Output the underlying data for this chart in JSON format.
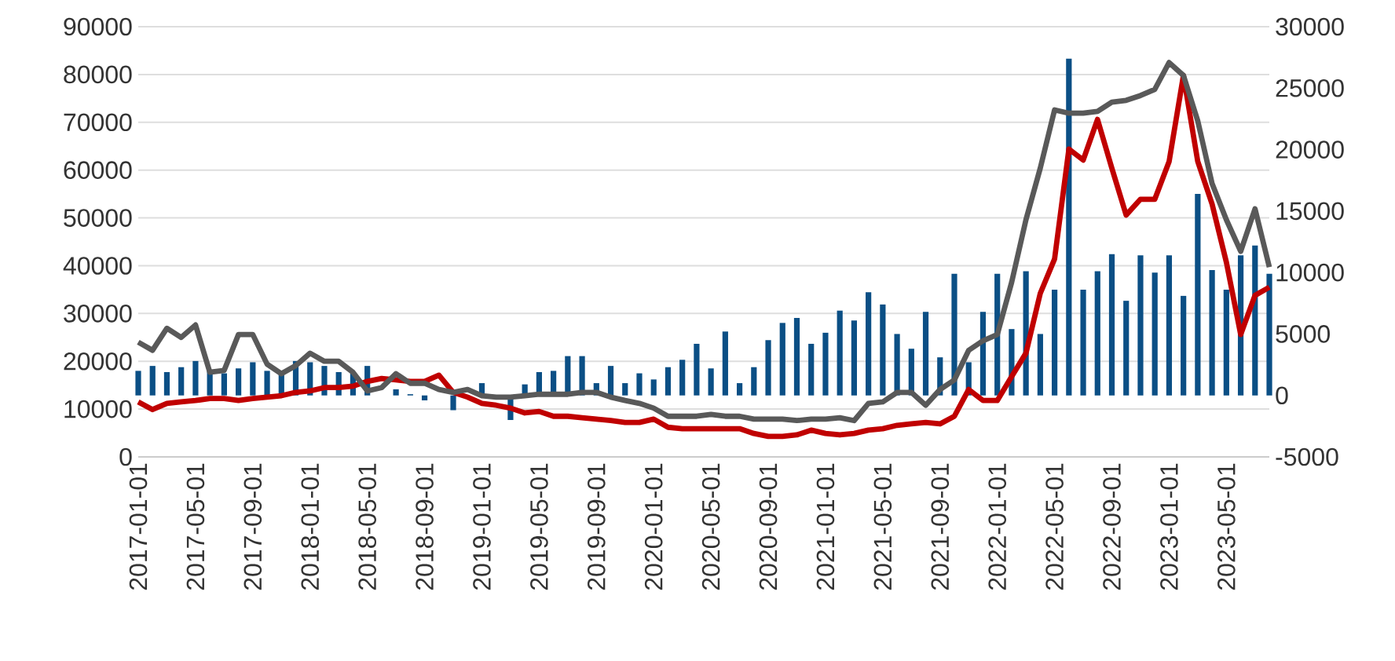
{
  "chart_data": {
    "type": "line",
    "categories": [
      "2017-01-01",
      null,
      null,
      null,
      "2017-05-01",
      null,
      null,
      null,
      "2017-09-01",
      null,
      null,
      null,
      "2018-01-01",
      null,
      null,
      null,
      "2018-05-01",
      null,
      null,
      null,
      "2018-09-01",
      null,
      null,
      null,
      "2019-01-01",
      null,
      null,
      null,
      "2019-05-01",
      null,
      null,
      null,
      "2019-09-01",
      null,
      null,
      null,
      "2020-01-01",
      null,
      null,
      null,
      "2020-05-01",
      null,
      null,
      null,
      "2020-09-01",
      null,
      null,
      null,
      "2021-01-01",
      null,
      null,
      null,
      "2021-05-01",
      null,
      null,
      null,
      "2021-09-01",
      null,
      null,
      null,
      "2022-01-01",
      null,
      null,
      null,
      "2022-05-01",
      null,
      null,
      null,
      "2022-09-01",
      null,
      null,
      null,
      "2023-01-01",
      null,
      null,
      null,
      "2023-05-01",
      null,
      null,
      null
    ],
    "series": [
      {
        "type": "bar",
        "axis": "y2",
        "color": "#0b4f85",
        "values": [
          2000,
          2400,
          1900,
          2300,
          2800,
          2000,
          1800,
          2200,
          2700,
          2000,
          1800,
          2800,
          2700,
          2400,
          1900,
          1800,
          2400,
          null,
          500,
          100,
          -400,
          0,
          -1200,
          null,
          1000,
          null,
          -2000,
          900,
          1900,
          2000,
          3200,
          3200,
          1000,
          2400,
          1000,
          1800,
          1300,
          2300,
          2900,
          4200,
          2200,
          5200,
          1000,
          2300,
          4500,
          5900,
          6300,
          4200,
          5100,
          6900,
          6100,
          8400,
          7400,
          5000,
          3800,
          6800,
          3100,
          9900,
          2700,
          6800,
          9900,
          5400,
          10100,
          5000,
          8600,
          27400,
          8600,
          10100,
          11500,
          7700,
          11400,
          10000,
          11400,
          8100,
          16400,
          10200,
          8600,
          11400,
          12200,
          9900
        ]
      },
      {
        "color": "#c00000",
        "values": [
          11500,
          9900,
          11200,
          11500,
          11800,
          12200,
          12200,
          11800,
          12200,
          12500,
          12800,
          13500,
          13800,
          14500,
          14500,
          14800,
          15800,
          16400,
          16100,
          15800,
          15800,
          17100,
          13500,
          12500,
          11200,
          10800,
          10200,
          9200,
          9500,
          8500,
          8500,
          8200,
          7900,
          7600,
          7200,
          7200,
          7900,
          6200,
          5900,
          5900,
          5900,
          5900,
          5900,
          4900,
          4300,
          4300,
          4600,
          5600,
          4900,
          4600,
          4900,
          5600,
          5900,
          6600,
          6900,
          7200,
          6900,
          8500,
          14100,
          11800,
          11800,
          16800,
          21700,
          34200,
          41400,
          64400,
          62100,
          70600,
          60400,
          50600,
          53900,
          53900,
          61800,
          79800,
          61800,
          52900,
          40700,
          25600,
          33800,
          35500
        ]
      },
      {
        "color": "#595959",
        "values": [
          24000,
          22300,
          26900,
          25000,
          27600,
          17700,
          18100,
          25600,
          25600,
          19400,
          17400,
          19100,
          21700,
          20000,
          20000,
          17700,
          13800,
          14500,
          17400,
          15400,
          15400,
          14100,
          13500,
          14100,
          12800,
          12500,
          12500,
          12800,
          13100,
          13100,
          13100,
          13500,
          13500,
          12500,
          11800,
          11200,
          10200,
          8500,
          8500,
          8500,
          8900,
          8500,
          8500,
          7900,
          7900,
          7900,
          7600,
          7900,
          7900,
          8200,
          7600,
          11200,
          11500,
          13500,
          13500,
          10800,
          14100,
          16100,
          22300,
          24300,
          25600,
          36500,
          49600,
          60400,
          72600,
          71900,
          71900,
          72300,
          74200,
          74600,
          75600,
          76900,
          82500,
          79800,
          70300,
          57200,
          49600,
          43000,
          51900,
          39700
        ]
      }
    ],
    "ylim": [
      0,
      90000
    ],
    "yticks": [
      0,
      10000,
      20000,
      30000,
      40000,
      50000,
      60000,
      70000,
      80000,
      90000
    ],
    "y2lim": [
      -5000,
      30000
    ],
    "y2ticks": [
      -5000,
      0,
      5000,
      10000,
      15000,
      20000,
      25000,
      30000
    ],
    "grid": "y"
  }
}
